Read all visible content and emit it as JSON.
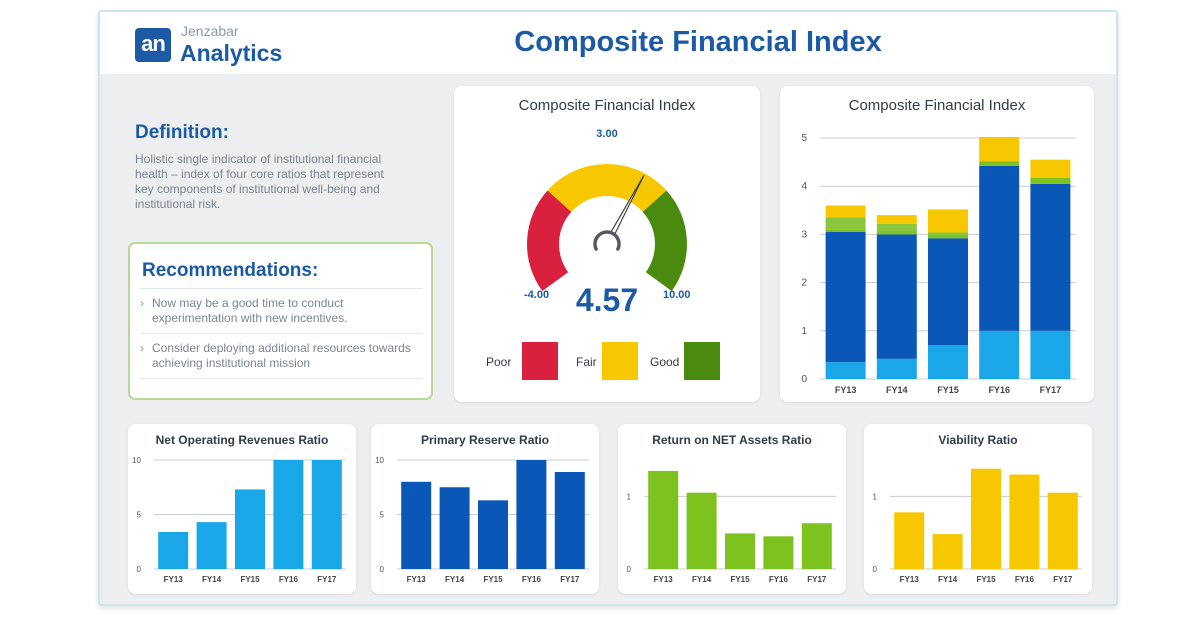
{
  "header": {
    "logo_mark": "an",
    "brand": "Jenzabar",
    "product": "Analytics",
    "title": "Composite Financial Index"
  },
  "definition": {
    "title": "Definition:",
    "text": "Holistic single indicator of institutional financial health – index of four core ratios that represent key components of institutional well-being and institutional risk."
  },
  "recommendations": {
    "title": "Recommendations:",
    "items": [
      "Now may be a good time to conduct experimentation with new incentives.",
      "Consider deploying additional resources towards achieving institutional mission"
    ]
  },
  "gauge": {
    "title": "Composite Financial Index",
    "value": "4.57",
    "min_label": "-4.00",
    "mid_label": "3.00",
    "max_label": "10.00",
    "colors": {
      "poor": "#d9203f",
      "fair": "#f7c800",
      "good": "#4a8a0e"
    },
    "legend": [
      {
        "label": "Poor",
        "color": "#d9203f"
      },
      {
        "label": "Fair",
        "color": "#f7c800"
      },
      {
        "label": "Good",
        "color": "#4a8a0e"
      }
    ]
  },
  "chart_data": [
    {
      "type": "bar",
      "stacked": true,
      "title": "Composite Financial Index",
      "categories": [
        "FY13",
        "FY14",
        "FY15",
        "FY16",
        "FY17"
      ],
      "ylim": [
        0,
        5
      ],
      "yticks": [
        0,
        1,
        2,
        3,
        4,
        5
      ],
      "grid": true,
      "series": [
        {
          "color": "#1aa7ea",
          "values": [
            0.35,
            0.42,
            0.7,
            1.0,
            1.0
          ]
        },
        {
          "color": "#0b57b8",
          "values": [
            2.7,
            2.58,
            2.22,
            3.42,
            3.05
          ]
        },
        {
          "color": "#7dc21e",
          "values": [
            0.05,
            0.06,
            0.08,
            0.1,
            0.12
          ]
        },
        {
          "color": "#8cc63f",
          "values": [
            0.25,
            0.16,
            0.04,
            0.0,
            0.0
          ]
        },
        {
          "color": "#f7c800",
          "values": [
            0.25,
            0.18,
            0.48,
            0.5,
            0.38
          ]
        }
      ]
    },
    {
      "type": "bar",
      "title": "Net Operating Revenues Ratio",
      "categories": [
        "FY13",
        "FY14",
        "FY15",
        "FY16",
        "FY17"
      ],
      "values": [
        3.4,
        4.3,
        7.3,
        10,
        10
      ],
      "ylim": [
        0,
        10
      ],
      "yticks": [
        0,
        5,
        10
      ],
      "color": "#1aa7ea",
      "grid": true
    },
    {
      "type": "bar",
      "title": "Primary Reserve Ratio",
      "categories": [
        "FY13",
        "FY14",
        "FY15",
        "FY16",
        "FY17"
      ],
      "values": [
        8,
        7.5,
        6.3,
        10,
        8.9
      ],
      "ylim": [
        0,
        10
      ],
      "yticks": [
        0,
        5,
        10
      ],
      "color": "#0b57b8",
      "grid": true
    },
    {
      "type": "bar",
      "title": "Return on NET Assets Ratio",
      "categories": [
        "FY13",
        "FY14",
        "FY15",
        "FY16",
        "FY17"
      ],
      "values": [
        1.35,
        1.05,
        0.49,
        0.45,
        0.63
      ],
      "ylim": [
        0,
        1.5
      ],
      "yticks": [
        0,
        1
      ],
      "color": "#7dc21e",
      "grid": true
    },
    {
      "type": "bar",
      "title": "Viability Ratio",
      "categories": [
        "FY13",
        "FY14",
        "FY15",
        "FY16",
        "FY17"
      ],
      "values": [
        0.78,
        0.48,
        1.38,
        1.3,
        1.05
      ],
      "ylim": [
        0,
        1.5
      ],
      "yticks": [
        0,
        1
      ],
      "color": "#f7c800",
      "grid": true
    }
  ]
}
